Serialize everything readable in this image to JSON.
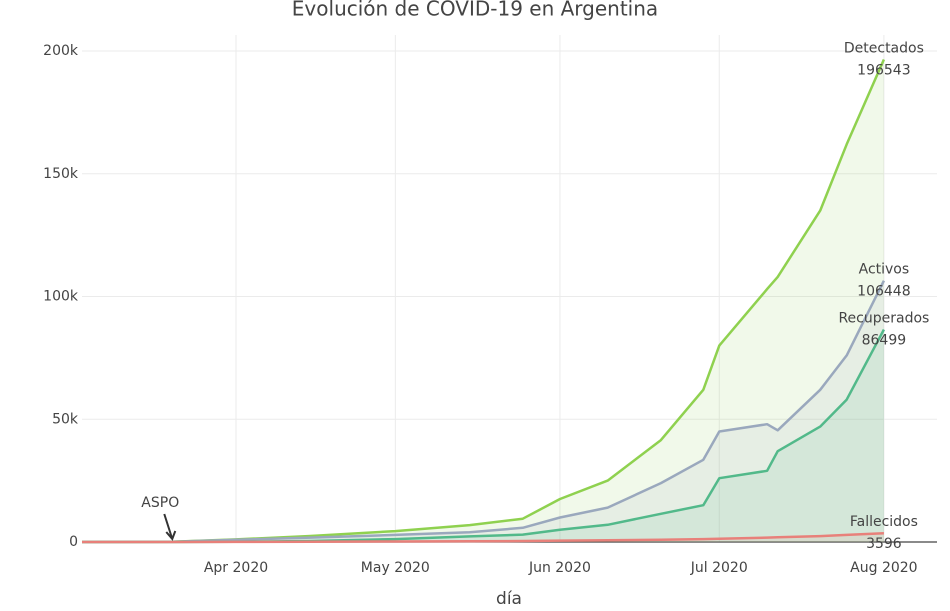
{
  "chart_data": {
    "type": "line",
    "title": "Evolución de COVID-19 en Argentina",
    "xlabel": "día",
    "x": [
      "2020-03-03",
      "2020-03-20",
      "2020-04-01",
      "2020-04-15",
      "2020-05-01",
      "2020-05-15",
      "2020-05-25",
      "2020-06-01",
      "2020-06-10",
      "2020-06-20",
      "2020-06-28",
      "2020-07-01",
      "2020-07-10",
      "2020-07-12",
      "2020-07-20",
      "2020-07-25",
      "2020-08-01"
    ],
    "xlim": [
      "2020-03-03",
      "2020-08-11"
    ],
    "xticks": [
      {
        "value": "2020-04-01",
        "label": "Apr 2020"
      },
      {
        "value": "2020-05-01",
        "label": "May 2020"
      },
      {
        "value": "2020-06-01",
        "label": "Jun 2020"
      },
      {
        "value": "2020-07-01",
        "label": "Jul 2020"
      },
      {
        "value": "2020-08-01",
        "label": "Aug 2020"
      }
    ],
    "ylim": [
      0,
      200000
    ],
    "yticks": [
      0,
      {
        "value": 50000,
        "label": "50k"
      },
      {
        "value": 100000,
        "label": "100k"
      },
      {
        "value": 150000,
        "label": "150k"
      },
      {
        "value": 200000,
        "label": "200k"
      }
    ],
    "grid": true,
    "fill": true,
    "series": [
      {
        "name": "Detectados",
        "color": "#8fd14f",
        "values": [
          1,
          128,
          1054,
          2443,
          4428,
          6879,
          9500,
          17500,
          25000,
          41500,
          62000,
          80000,
          103000,
          108000,
          135000,
          162000,
          196543
        ]
      },
      {
        "name": "Activos",
        "color": "#9aa8bd",
        "values": [
          1,
          120,
          900,
          1800,
          2900,
          4000,
          5800,
          10000,
          14000,
          24000,
          33500,
          45000,
          48000,
          45500,
          62000,
          76000,
          106448
        ]
      },
      {
        "name": "Recuperados",
        "color": "#52b98a",
        "values": [
          0,
          3,
          100,
          400,
          1200,
          2300,
          3000,
          5000,
          7000,
          11500,
          15000,
          26000,
          29000,
          37000,
          47000,
          58000,
          86499
        ]
      },
      {
        "name": "Fallecidos",
        "color": "#e8807a",
        "values": [
          0,
          3,
          27,
          100,
          214,
          300,
          400,
          550,
          700,
          900,
          1200,
          1300,
          1800,
          1900,
          2400,
          2900,
          3596
        ]
      }
    ],
    "annotations": [
      {
        "text": "ASPO",
        "x": "2020-03-20",
        "y": 0
      }
    ]
  }
}
